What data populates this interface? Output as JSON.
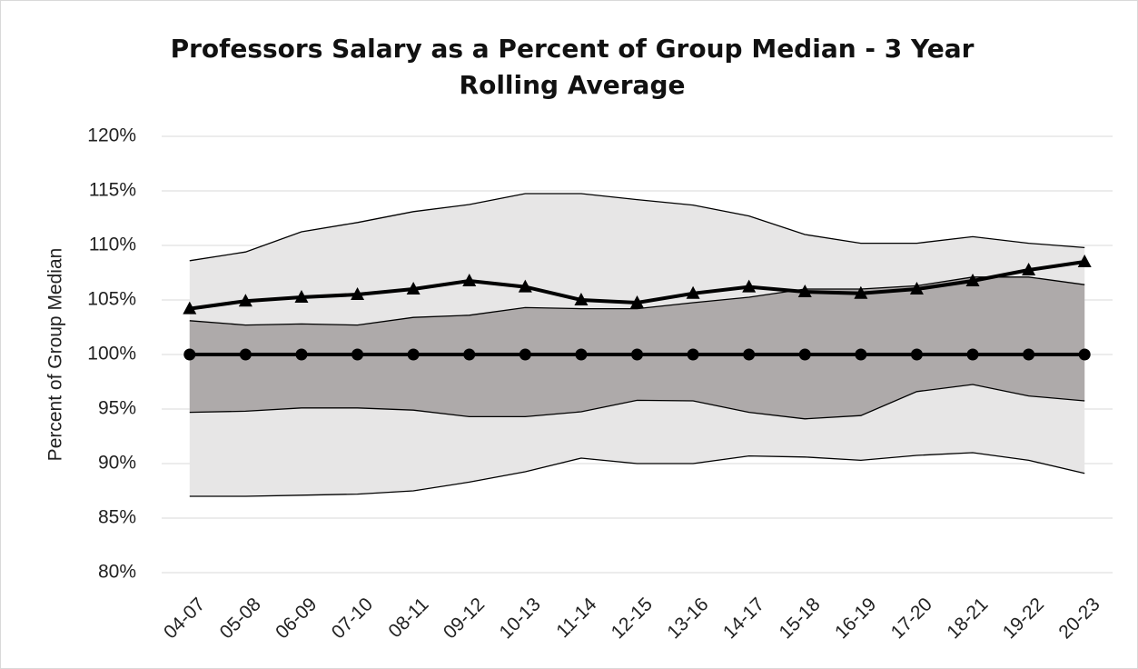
{
  "chart_data": {
    "type": "line",
    "title": "Professors Salary as a Percent of Group Median - 3 Year Rolling Average",
    "ylabel": "Percent of Group Median",
    "categories": [
      "04-07",
      "05-08",
      "06-09",
      "07-10",
      "08-11",
      "09-12",
      "10-13",
      "11-14",
      "12-15",
      "13-16",
      "14-17",
      "15-18",
      "16-19",
      "17-20",
      "18-21",
      "19-22",
      "20-23"
    ],
    "bands": [
      {
        "color": "#e7e6e6",
        "upper": [
          108.6,
          109.4,
          111.25,
          112.1,
          113.1,
          113.75,
          114.75,
          114.75,
          114.2,
          113.7,
          112.7,
          111,
          110.2,
          110.2,
          110.8,
          110.2,
          109.8
        ],
        "lower": [
          87,
          87,
          87.1,
          87.2,
          87.5,
          88.3,
          89.25,
          90.5,
          90,
          90,
          90.7,
          90.6,
          90.3,
          90.75,
          91,
          90.3,
          89.1
        ]
      },
      {
        "color": "#aeaaaa",
        "upper": [
          103.1,
          102.7,
          102.8,
          102.7,
          103.4,
          103.6,
          104.3,
          104.2,
          104.2,
          104.75,
          105.25,
          106,
          106,
          106.3,
          107.1,
          107.1,
          106.4
        ],
        "lower": [
          94.7,
          94.8,
          95.1,
          95.1,
          94.9,
          94.3,
          94.3,
          94.75,
          95.8,
          95.75,
          94.7,
          94.1,
          94.4,
          96.6,
          97.25,
          96.2,
          95.75
        ]
      }
    ],
    "series": [
      {
        "color": "#000000",
        "marker": "circle",
        "values": [
          100,
          100,
          100,
          100,
          100,
          100,
          100,
          100,
          100,
          100,
          100,
          100,
          100,
          100,
          100,
          100,
          100
        ]
      },
      {
        "color": "#000000",
        "marker": "triangle",
        "values": [
          104.2,
          104.9,
          105.25,
          105.5,
          106,
          106.75,
          106.2,
          105,
          104.75,
          105.6,
          106.2,
          105.75,
          105.6,
          106,
          106.75,
          107.75,
          108.5
        ]
      }
    ],
    "ylim": [
      80,
      120
    ],
    "yticks": [
      {
        "value": 80,
        "label": "80%"
      },
      {
        "value": 85,
        "label": "85%"
      },
      {
        "value": 90,
        "label": "90%"
      },
      {
        "value": 95,
        "label": "95%"
      },
      {
        "value": 100,
        "label": "100%"
      },
      {
        "value": 105,
        "label": "105%"
      },
      {
        "value": 110,
        "label": "110%"
      },
      {
        "value": 115,
        "label": "115%"
      },
      {
        "value": 120,
        "label": "120%"
      }
    ],
    "grid": true
  }
}
